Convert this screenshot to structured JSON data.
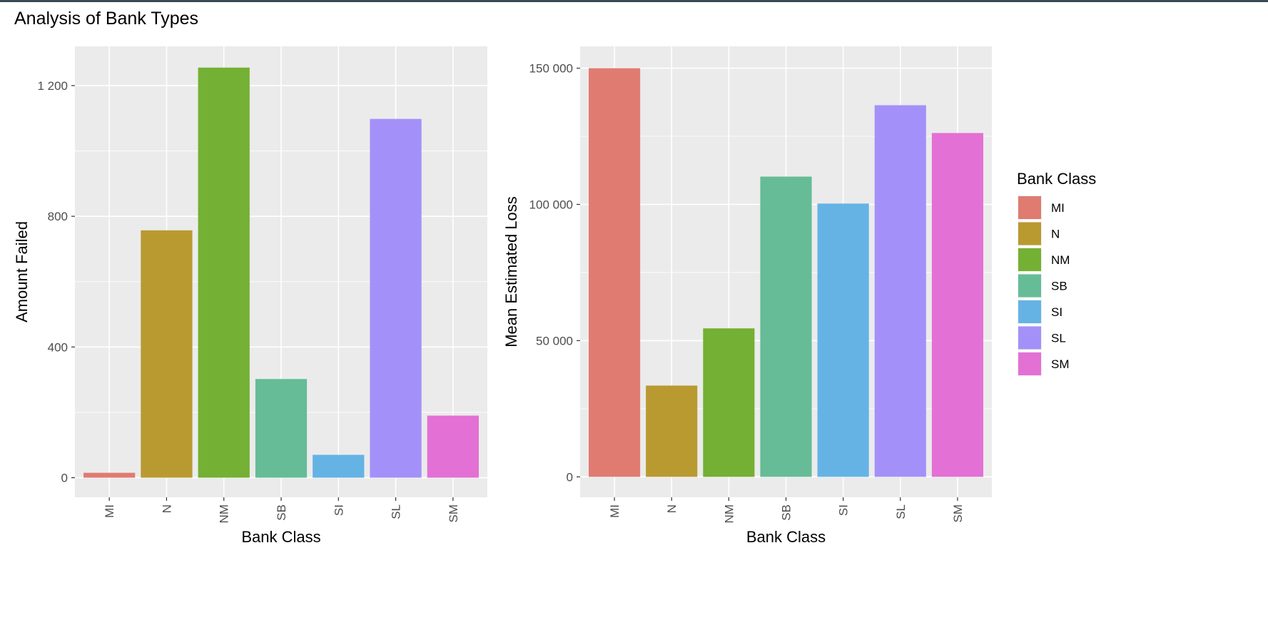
{
  "figure_title": "Analysis of Bank Types",
  "chart_data": [
    {
      "type": "bar",
      "categories": [
        "MI",
        "N",
        "NM",
        "SB",
        "SI",
        "SL",
        "SM"
      ],
      "values": [
        15,
        757,
        1255,
        302,
        70,
        1098,
        190
      ],
      "xlabel": "Bank Class",
      "ylabel": "Amount Failed",
      "ylim": [
        -60,
        1320
      ],
      "yticks": [
        0,
        400,
        800,
        1200
      ],
      "ytick_labels": [
        "0",
        "400",
        "800",
        "1 200"
      ],
      "grid": true
    },
    {
      "type": "bar",
      "categories": [
        "MI",
        "N",
        "NM",
        "SB",
        "SI",
        "SL",
        "SM"
      ],
      "values": [
        150000,
        33500,
        54500,
        110200,
        100300,
        136400,
        126200
      ],
      "xlabel": "Bank Class",
      "ylabel": "Mean Estimated Loss",
      "ylim": [
        -7500,
        158000
      ],
      "yticks": [
        0,
        50000,
        100000,
        150000
      ],
      "ytick_labels": [
        "0",
        "50 000",
        "100 000",
        "150 000"
      ],
      "grid": true
    }
  ],
  "legend": {
    "title": "Bank Class",
    "placement": "right",
    "items": [
      {
        "label": "MI",
        "color": "#e07b72"
      },
      {
        "label": "N",
        "color": "#b99a31"
      },
      {
        "label": "NM",
        "color": "#74b033"
      },
      {
        "label": "SB",
        "color": "#66bc97"
      },
      {
        "label": "SI",
        "color": "#65b3e5"
      },
      {
        "label": "SL",
        "color": "#a391f9"
      },
      {
        "label": "SM",
        "color": "#e370d4"
      }
    ]
  }
}
